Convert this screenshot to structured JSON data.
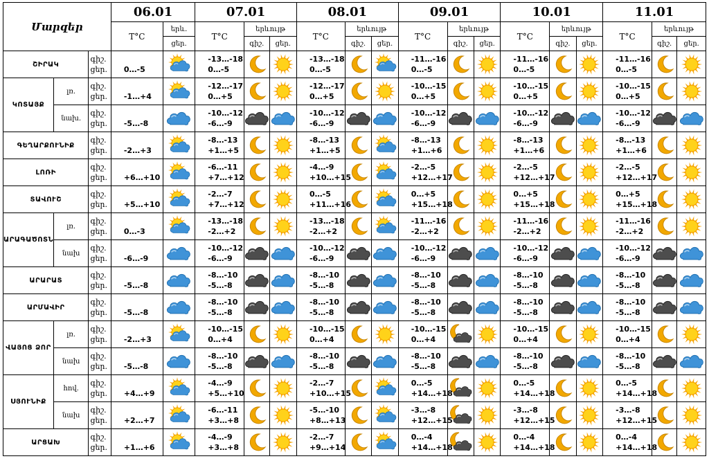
{
  "title": "Մարզեր",
  "dates": [
    "06.01",
    "07.01",
    "08.01",
    "09.01",
    "10.01",
    "11.01"
  ],
  "hdr": {
    "temp": "T°C",
    "phen_short": "երև.",
    "phen": "երևույթ",
    "night": "գիշ.",
    "day": "ցեր.",
    "daynight": "գիշ.\nցեր."
  },
  "rows": [
    {
      "region": "ՇԻՐԱԿ",
      "sub": "",
      "t": [
        [
          "",
          "0…-5"
        ],
        [
          "-13…-18",
          "0…-5"
        ],
        [
          "-13…-18",
          "0…-5"
        ],
        [
          "-11…-16",
          "0…-5"
        ],
        [
          "-11…-16",
          "0…-5"
        ],
        [
          "-11…-16",
          "0…-5"
        ]
      ],
      "ic": [
        "sunCloud",
        "moon",
        "sun",
        "moon",
        "sunCloud",
        "moon",
        "sun",
        "moon",
        "sun",
        "moon",
        "sun"
      ]
    },
    {
      "region": "ԿՈՏԱՅՔ",
      "sub": "լռ.",
      "t": [
        [
          "",
          "-1…+4"
        ],
        [
          "-12…-17",
          "0…+5"
        ],
        [
          "-12…-17",
          "0…+5"
        ],
        [
          "-10…-15",
          "0…+5"
        ],
        [
          "-10…-15",
          "0…+5"
        ],
        [
          "-10…-15",
          "0…+5"
        ]
      ],
      "ic": [
        "sunCloud",
        "moon",
        "sun",
        "moon",
        "sun",
        "moon",
        "sun",
        "moon",
        "sun",
        "moon",
        "sun"
      ]
    },
    {
      "region": "",
      "sub": "նախ.",
      "t": [
        [
          "",
          "-5…-8"
        ],
        [
          "-10…-12",
          "-6…-9"
        ],
        [
          "-10…-12",
          "-6…-9"
        ],
        [
          "-10…-12",
          "-6…-9"
        ],
        [
          "-10…-12",
          "-6…-9"
        ],
        [
          "-10…-12",
          "-6…-9"
        ]
      ],
      "ic": [
        "blueCloud",
        "darkCloud",
        "blueCloud",
        "darkCloud",
        "blueCloud",
        "darkCloud",
        "blueCloud",
        "darkCloud",
        "blueCloud",
        "darkCloud",
        "blueCloud"
      ]
    },
    {
      "region": "ԳԵՂԱՐՔՈՒՆԻՔ",
      "sub": "",
      "t": [
        [
          "",
          "-2…+3"
        ],
        [
          "-8…-13",
          "+1…+5"
        ],
        [
          "-8…-13",
          "+1…+5"
        ],
        [
          "-8…-13",
          "+1…+6"
        ],
        [
          "-8…-13",
          "+1…+6"
        ],
        [
          "-8…-13",
          "+1…+6"
        ]
      ],
      "ic": [
        "sunCloud",
        "moon",
        "sun",
        "moon",
        "sunCloud",
        "moon",
        "sun",
        "moon",
        "sun",
        "moon",
        "sun"
      ]
    },
    {
      "region": "ԼՈՌԻ",
      "sub": "",
      "t": [
        [
          "",
          "+6…+10"
        ],
        [
          "-6…-11",
          "+7…+12"
        ],
        [
          "-4…-9",
          "+10…+15"
        ],
        [
          "-2…-5",
          "+12…+17"
        ],
        [
          "-2…-5",
          "+12…+17"
        ],
        [
          "-2…-5",
          "+12…+17"
        ]
      ],
      "ic": [
        "sunCloud",
        "moon",
        "sun",
        "moon",
        "sunCloud",
        "moon",
        "sun",
        "moon",
        "sun",
        "moon",
        "sun"
      ]
    },
    {
      "region": "ՏԱՎՈՒՇ",
      "sub": "",
      "t": [
        [
          "",
          "+5…+10"
        ],
        [
          "-2…-7",
          "+7…+12"
        ],
        [
          "0…-5",
          "+11…+16"
        ],
        [
          "0…+5",
          "+15…+18"
        ],
        [
          "0…+5",
          "+15…+18"
        ],
        [
          "0…+5",
          "+15…+18"
        ]
      ],
      "ic": [
        "sunCloud",
        "moon",
        "sun",
        "moon",
        "sunCloud",
        "moon",
        "sun",
        "moon",
        "sun",
        "moon",
        "sun"
      ]
    },
    {
      "region": "ԱՐԱԳԱԾՈՏՆ",
      "sub": "լռ.",
      "t": [
        [
          "",
          "0…-3"
        ],
        [
          "-13…-18",
          "-2…+2"
        ],
        [
          "-13…-18",
          "-2…+2"
        ],
        [
          "-11…-16",
          "-2…+2"
        ],
        [
          "-11…-16",
          "-2…+2"
        ],
        [
          "-11…-16",
          "-2…+2"
        ]
      ],
      "ic": [
        "sunCloud",
        "moon",
        "sun",
        "moon",
        "sunCloud",
        "moon",
        "sun",
        "moon",
        "sun",
        "moon",
        "sun"
      ]
    },
    {
      "region": "",
      "sub": "նախ",
      "t": [
        [
          "",
          "-6…-9"
        ],
        [
          "-10…-12",
          "-6…-9"
        ],
        [
          "-10…-12",
          "-6…-9"
        ],
        [
          "-10…-12",
          "-6…-9"
        ],
        [
          "-10…-12",
          "-6…-9"
        ],
        [
          "-10…-12",
          "-6…-9"
        ]
      ],
      "ic": [
        "blueCloud",
        "darkCloud",
        "blueCloud",
        "darkCloud",
        "blueCloud",
        "darkCloud",
        "blueCloud",
        "darkCloud",
        "blueCloud",
        "darkCloud",
        "blueCloud"
      ]
    },
    {
      "region": "ԱՐԱՐԱՏ",
      "sub": "",
      "t": [
        [
          "",
          "-5…-8"
        ],
        [
          "-8…-10",
          "-5…-8"
        ],
        [
          "-8…-10",
          "-5…-8"
        ],
        [
          "-8…-10",
          "-5…-8"
        ],
        [
          "-8…-10",
          "-5…-8"
        ],
        [
          "-8…-10",
          "-5…-8"
        ]
      ],
      "ic": [
        "blueCloud",
        "darkCloud",
        "blueCloud",
        "darkCloud",
        "blueCloud",
        "darkCloud",
        "blueCloud",
        "darkCloud",
        "blueCloud",
        "darkCloud",
        "blueCloud"
      ]
    },
    {
      "region": "ԱՐՄԱՎԻՐ",
      "sub": "",
      "t": [
        [
          "",
          "-5…-8"
        ],
        [
          "-8…-10",
          "-5…-8"
        ],
        [
          "-8…-10",
          "-5…-8"
        ],
        [
          "-8…-10",
          "-5…-8"
        ],
        [
          "-8…-10",
          "-5…-8"
        ],
        [
          "-8…-10",
          "-5…-8"
        ]
      ],
      "ic": [
        "blueCloud",
        "darkCloud",
        "blueCloud",
        "darkCloud",
        "blueCloud",
        "darkCloud",
        "blueCloud",
        "darkCloud",
        "blueCloud",
        "darkCloud",
        "blueCloud"
      ]
    },
    {
      "region": "ՎԱՅՈՑ ՁՈՐ",
      "sub": "լռ.",
      "t": [
        [
          "",
          "-2…+3"
        ],
        [
          "-10…-15",
          "0…+4"
        ],
        [
          "-10…-15",
          "0…+4"
        ],
        [
          "-10…-15",
          "0…+4"
        ],
        [
          "-10…-15",
          "0…+4"
        ],
        [
          "-10…-15",
          "0…+4"
        ]
      ],
      "ic": [
        "sunCloud",
        "moon",
        "sun",
        "moon",
        "sun",
        "moonCloud",
        "sun",
        "moon",
        "sun",
        "moon",
        "sun"
      ]
    },
    {
      "region": "",
      "sub": "նախ",
      "t": [
        [
          "",
          "-5…-8"
        ],
        [
          "-8…-10",
          "-5…-8"
        ],
        [
          "-8…-10",
          "-5…-8"
        ],
        [
          "-8…-10",
          "-5…-8"
        ],
        [
          "-8…-10",
          "-5…-8"
        ],
        [
          "-8…-10",
          "-5…-8"
        ]
      ],
      "ic": [
        "blueCloud",
        "darkCloud",
        "blueCloud",
        "darkCloud",
        "blueCloud",
        "darkCloud",
        "blueCloud",
        "darkCloud",
        "blueCloud",
        "darkCloud",
        "blueCloud"
      ]
    },
    {
      "region": "ՍՅՈՒՆԻՔ",
      "sub": "հով.",
      "t": [
        [
          "",
          "+4…+9"
        ],
        [
          "-4…-9",
          "+5…+10"
        ],
        [
          "-2…-7",
          "+10…+15"
        ],
        [
          "0…-5",
          "+14…+18"
        ],
        [
          "0…-5",
          "+14…+18"
        ],
        [
          "0…-5",
          "+14…+18"
        ]
      ],
      "ic": [
        "sunCloud",
        "moon",
        "sun",
        "moon",
        "sunCloud",
        "moonCloud",
        "sun",
        "moon",
        "sun",
        "moon",
        "sun"
      ]
    },
    {
      "region": "",
      "sub": "նախ",
      "t": [
        [
          "",
          "+2…+7"
        ],
        [
          "-6…-11",
          "+3…+8"
        ],
        [
          "-5…-10",
          "+8…+13"
        ],
        [
          "-3…-8",
          "+12…+15"
        ],
        [
          "-3…-8",
          "+12…+15"
        ],
        [
          "-3…-8",
          "+12…+15"
        ]
      ],
      "ic": [
        "sunCloud",
        "moon",
        "sun",
        "moon",
        "sunCloud",
        "moonCloud",
        "sun",
        "moon",
        "sun",
        "moon",
        "sun"
      ]
    },
    {
      "region": "ԱՐՑԱԽ",
      "sub": "",
      "t": [
        [
          "",
          "+1…+6"
        ],
        [
          "-4…-9",
          "+3…+8"
        ],
        [
          "-2…-7",
          "+9…+14"
        ],
        [
          "0…-4",
          "+14…+18"
        ],
        [
          "0…-4",
          "+14…+18"
        ],
        [
          "0…-4",
          "+14…+18"
        ]
      ],
      "ic": [
        "sunCloud",
        "moon",
        "sun",
        "moon",
        "sunCloud",
        "moonCloud",
        "sun",
        "moon",
        "sun",
        "moon",
        "sun"
      ]
    }
  ],
  "colors": {
    "sun": "#f5a300",
    "sunCore": "#ffd21a",
    "moon": "#f2a800",
    "blueCloud": "#3f93d8",
    "darkCloud": "#4d4d4d"
  }
}
